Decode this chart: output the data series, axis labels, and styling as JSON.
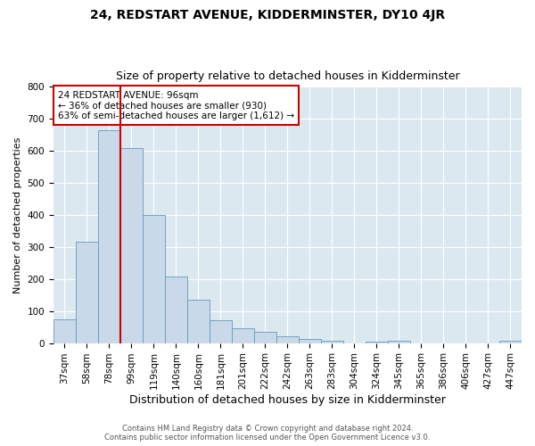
{
  "title": "24, REDSTART AVENUE, KIDDERMINSTER, DY10 4JR",
  "subtitle": "Size of property relative to detached houses in Kidderminster",
  "xlabel": "Distribution of detached houses by size in Kidderminster",
  "ylabel": "Number of detached properties",
  "bar_color": "#c9d9ea",
  "bar_edge_color": "#6699bb",
  "figure_bg": "#ffffff",
  "axes_bg": "#dce8f0",
  "grid_color": "#ffffff",
  "categories": [
    "37sqm",
    "58sqm",
    "78sqm",
    "99sqm",
    "119sqm",
    "140sqm",
    "160sqm",
    "181sqm",
    "201sqm",
    "222sqm",
    "242sqm",
    "263sqm",
    "283sqm",
    "304sqm",
    "324sqm",
    "345sqm",
    "365sqm",
    "386sqm",
    "406sqm",
    "427sqm",
    "447sqm"
  ],
  "values": [
    75,
    315,
    665,
    610,
    400,
    207,
    135,
    70,
    45,
    35,
    20,
    12,
    8,
    0,
    5,
    8,
    0,
    0,
    0,
    0,
    8
  ],
  "ylim": [
    0,
    800
  ],
  "yticks": [
    0,
    100,
    200,
    300,
    400,
    500,
    600,
    700,
    800
  ],
  "vline_index": 3,
  "vline_color": "#cc0000",
  "annotation_line1": "24 REDSTART AVENUE: 96sqm",
  "annotation_line2": "← 36% of detached houses are smaller (930)",
  "annotation_line3": "63% of semi-detached houses are larger (1,612) →",
  "annotation_box_facecolor": "#ffffff",
  "annotation_box_edgecolor": "#cc0000",
  "footer1": "Contains HM Land Registry data © Crown copyright and database right 2024.",
  "footer2": "Contains public sector information licensed under the Open Government Licence v3.0.",
  "title_fontsize": 10,
  "subtitle_fontsize": 9,
  "xlabel_fontsize": 9,
  "ylabel_fontsize": 8,
  "tick_fontsize": 7.5,
  "footer_fontsize": 6
}
